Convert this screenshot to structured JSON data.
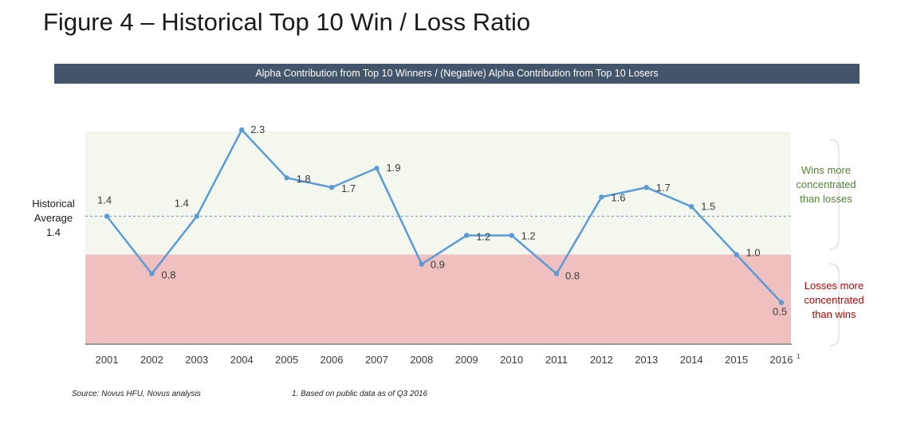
{
  "figure_title": "Figure 4 – Historical Top 10 Win / Loss Ratio",
  "banner": "Alpha Contribution from Top 10 Winners / (Negative) Alpha Contribution from Top 10 Losers",
  "historical_average": {
    "line1": "Historical",
    "line2": "Average",
    "value": "1.4"
  },
  "zones": {
    "upper": {
      "label": [
        "Wins more",
        "concentrated",
        "than losses"
      ],
      "color": "#538135"
    },
    "lower": {
      "label": [
        "Losses more",
        "concentrated",
        "than wins"
      ],
      "color": "#c00000"
    }
  },
  "footnotes": {
    "source": "Source: Novus HFU, Novus analysis",
    "note": "1. Based on public data as of Q3 2016"
  },
  "chart_data": {
    "type": "line",
    "x": [
      "2001",
      "2002",
      "2003",
      "2004",
      "2005",
      "2006",
      "2007",
      "2008",
      "2009",
      "2010",
      "2011",
      "2012",
      "2013",
      "2014",
      "2015",
      "2016"
    ],
    "x_superscript": {
      "2016": "1"
    },
    "values": [
      1.4,
      0.8,
      1.4,
      2.3,
      1.8,
      1.7,
      1.9,
      0.9,
      1.2,
      1.2,
      0.8,
      1.6,
      1.7,
      1.5,
      1.0,
      0.5
    ],
    "data_labels": [
      "1.4",
      "0.8",
      "1.4",
      "2.3",
      "1.8",
      "1.7",
      "1.9",
      "0.9",
      "1.2",
      "1.2",
      "0.8",
      "1.6",
      "1.7",
      "1.5",
      "1.0",
      "0.5"
    ],
    "reference_line": 1.4,
    "threshold": 1.0,
    "line_color": "#5b9bd5",
    "upper_fill": "#f3f7ee",
    "lower_fill": "#f0c0c0"
  }
}
